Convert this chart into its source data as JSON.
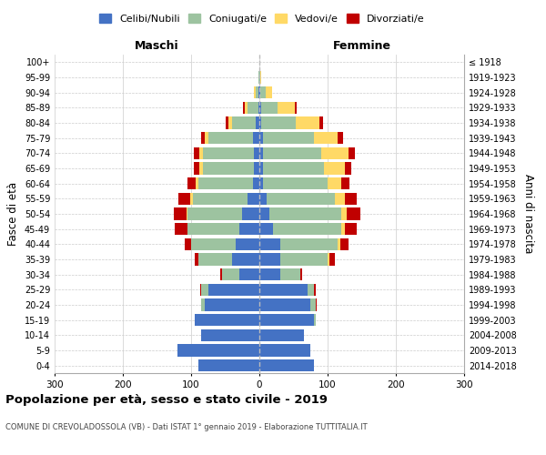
{
  "age_groups": [
    "0-4",
    "5-9",
    "10-14",
    "15-19",
    "20-24",
    "25-29",
    "30-34",
    "35-39",
    "40-44",
    "45-49",
    "50-54",
    "55-59",
    "60-64",
    "65-69",
    "70-74",
    "75-79",
    "80-84",
    "85-89",
    "90-94",
    "95-99",
    "100+"
  ],
  "birth_years": [
    "2014-2018",
    "2009-2013",
    "2004-2008",
    "1999-2003",
    "1994-1998",
    "1989-1993",
    "1984-1988",
    "1979-1983",
    "1974-1978",
    "1969-1973",
    "1964-1968",
    "1959-1963",
    "1954-1958",
    "1949-1953",
    "1944-1948",
    "1939-1943",
    "1934-1938",
    "1929-1933",
    "1924-1928",
    "1919-1923",
    "≤ 1918"
  ],
  "males": {
    "celibe": [
      90,
      120,
      85,
      95,
      80,
      75,
      30,
      40,
      35,
      30,
      25,
      18,
      10,
      8,
      8,
      10,
      5,
      2,
      1,
      0,
      0
    ],
    "coniugato": [
      0,
      0,
      0,
      0,
      5,
      10,
      25,
      50,
      65,
      75,
      80,
      80,
      80,
      75,
      75,
      65,
      35,
      15,
      5,
      1,
      0
    ],
    "vedovo": [
      0,
      0,
      0,
      0,
      0,
      0,
      0,
      0,
      0,
      1,
      2,
      3,
      3,
      5,
      5,
      5,
      5,
      5,
      2,
      0,
      0
    ],
    "divorziato": [
      0,
      0,
      0,
      0,
      1,
      2,
      3,
      5,
      10,
      18,
      18,
      18,
      12,
      8,
      8,
      5,
      5,
      2,
      0,
      0,
      0
    ]
  },
  "females": {
    "nubile": [
      80,
      75,
      65,
      80,
      75,
      70,
      30,
      30,
      30,
      20,
      15,
      10,
      5,
      5,
      5,
      5,
      3,
      2,
      1,
      0,
      0
    ],
    "coniugata": [
      0,
      0,
      0,
      3,
      8,
      10,
      30,
      70,
      85,
      100,
      105,
      100,
      95,
      90,
      85,
      75,
      50,
      25,
      8,
      1,
      0
    ],
    "vedova": [
      0,
      0,
      0,
      0,
      0,
      0,
      0,
      2,
      3,
      5,
      8,
      15,
      20,
      30,
      40,
      35,
      35,
      25,
      10,
      1,
      0
    ],
    "divorziata": [
      0,
      0,
      0,
      0,
      1,
      2,
      3,
      8,
      12,
      18,
      20,
      18,
      12,
      10,
      10,
      8,
      5,
      3,
      0,
      0,
      0
    ]
  },
  "colors": {
    "celibe": "#4472C4",
    "coniugato": "#9DC3A0",
    "vedovo": "#FFD966",
    "divorziato": "#C00000"
  },
  "xlim": 300,
  "title": "Popolazione per età, sesso e stato civile - 2019",
  "subtitle": "COMUNE DI CREVOLADOSSOLA (VB) - Dati ISTAT 1° gennaio 2019 - Elaborazione TUTTITALIA.IT",
  "xlabel_left": "Maschi",
  "xlabel_right": "Femmine",
  "ylabel_left": "Fasce di età",
  "ylabel_right": "Anni di nascita",
  "legend_labels": [
    "Celibi/Nubili",
    "Coniugati/e",
    "Vedovi/e",
    "Divorziati/e"
  ],
  "bg_color": "#ffffff",
  "grid_color": "#cccccc"
}
